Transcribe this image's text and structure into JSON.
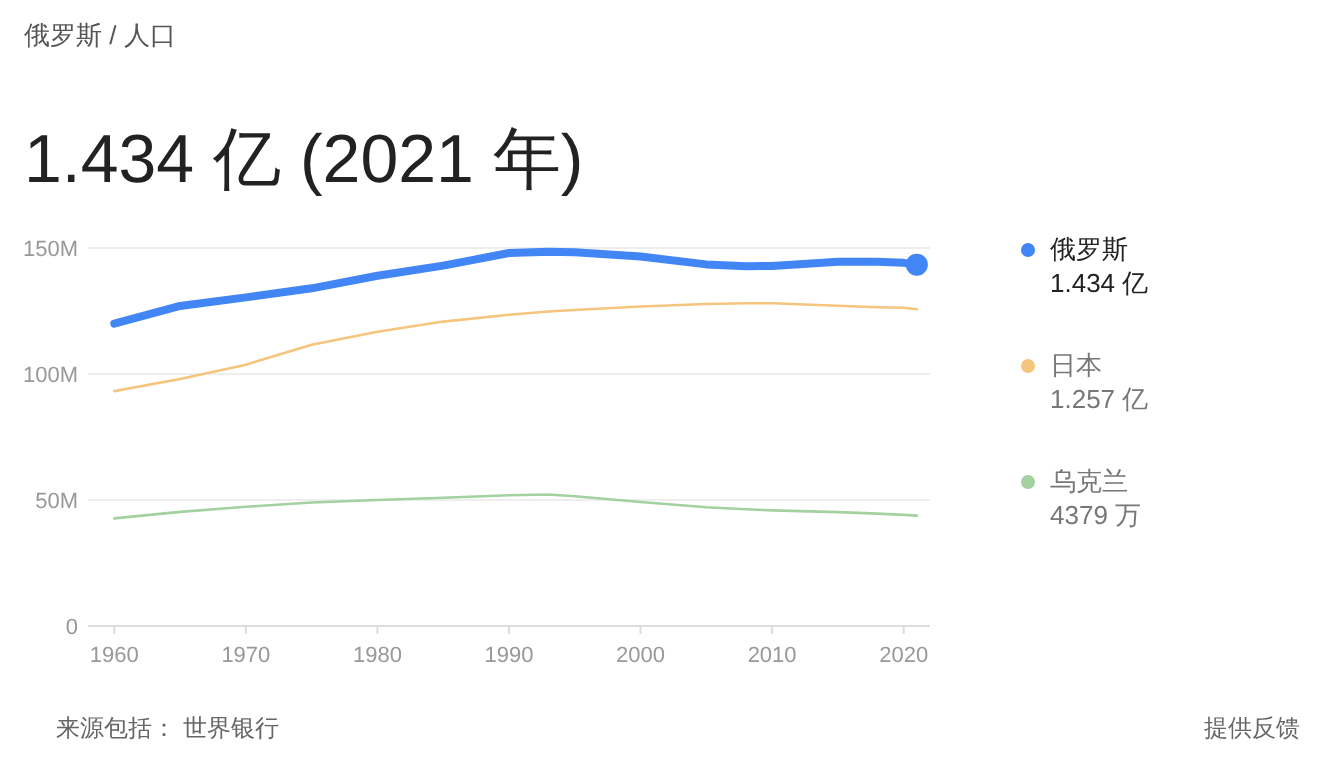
{
  "chart_data": {
    "type": "line",
    "subtitle": "俄罗斯 / 人口",
    "title": "1.434 亿 (2021 年)",
    "x": [
      1960,
      1965,
      1970,
      1975,
      1980,
      1985,
      1990,
      1993,
      1995,
      2000,
      2005,
      2008,
      2010,
      2015,
      2018,
      2020,
      2021
    ],
    "series": [
      {
        "name": "俄罗斯",
        "color": "#4285f4",
        "values": [
          120,
          127,
          130.4,
          134,
          139,
          143,
          148,
          148.5,
          148.3,
          146.6,
          143.5,
          142.8,
          142.9,
          144.5,
          144.5,
          144.1,
          143.4
        ]
      },
      {
        "name": "日本",
        "color": "#f5c57e",
        "values": [
          93.2,
          98,
          103.7,
          111.6,
          116.8,
          120.8,
          123.5,
          124.8,
          125.4,
          126.8,
          127.8,
          128.1,
          128.1,
          127.1,
          126.5,
          126.3,
          125.7
        ]
      },
      {
        "name": "乌克兰",
        "color": "#a4d1a0",
        "values": [
          42.7,
          45.3,
          47.3,
          49,
          50,
          50.9,
          51.9,
          52.2,
          51.5,
          49.2,
          47.1,
          46.3,
          45.9,
          45.2,
          44.6,
          44.1,
          43.8
        ]
      },
      {
        "type": "scatter",
        "color": "#4285f4",
        "x": [
          2021
        ],
        "values": [
          143.4
        ]
      }
    ],
    "xlim": [
      1958,
      2022
    ],
    "xticks": [
      1960,
      1970,
      1980,
      1990,
      2000,
      2010,
      2020
    ],
    "ylim": [
      0,
      150
    ],
    "yticks": [
      {
        "value": 0,
        "label": "0"
      },
      {
        "value": 50,
        "label": "50M"
      },
      {
        "value": 100,
        "label": "100M"
      },
      {
        "value": 150,
        "label": "150M"
      }
    ],
    "grid": "y",
    "legend": "right",
    "annotations": [
      "1.434 亿",
      "1.257 亿",
      "4379 万",
      "来源包括： 世界银行",
      "提供反馈"
    ]
  }
}
